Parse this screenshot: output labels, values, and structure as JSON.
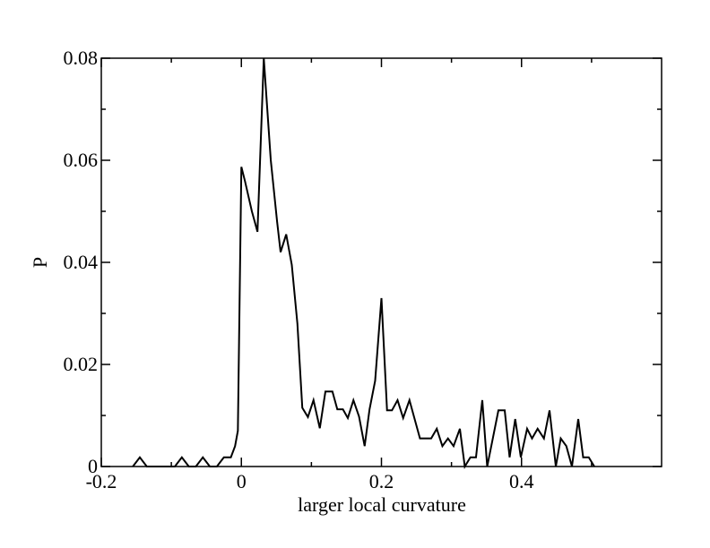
{
  "chart_data": {
    "type": "line",
    "xlabel": "larger local curvature",
    "ylabel": "P",
    "xlim": [
      -0.2,
      0.6
    ],
    "ylim": [
      0,
      0.08
    ],
    "xticks": [
      -0.2,
      0,
      0.2,
      0.4
    ],
    "yticks": [
      0,
      0.02,
      0.04,
      0.06,
      0.08
    ],
    "series": [
      {
        "color": "#000000",
        "x": [
          -0.155,
          -0.145,
          -0.135,
          -0.095,
          -0.085,
          -0.075,
          -0.065,
          -0.055,
          -0.045,
          -0.035,
          -0.025,
          -0.015,
          -0.009,
          -0.005,
          0.0,
          0.005,
          0.015,
          0.023,
          0.032,
          0.042,
          0.051,
          0.056,
          0.064,
          0.072,
          0.08,
          0.087,
          0.095,
          0.103,
          0.112,
          0.12,
          0.13,
          0.137,
          0.145,
          0.152,
          0.16,
          0.168,
          0.176,
          0.183,
          0.191,
          0.2,
          0.208,
          0.215,
          0.223,
          0.231,
          0.24,
          0.247,
          0.255,
          0.263,
          0.271,
          0.279,
          0.287,
          0.295,
          0.303,
          0.312,
          0.319,
          0.327,
          0.335,
          0.344,
          0.351,
          0.359,
          0.367,
          0.376,
          0.383,
          0.391,
          0.399,
          0.408,
          0.415,
          0.423,
          0.432,
          0.44,
          0.449,
          0.456,
          0.464,
          0.472,
          0.481,
          0.488,
          0.496,
          0.504
        ],
        "values": [
          0,
          0.0018,
          0,
          0,
          0.0018,
          0,
          0,
          0.0018,
          0,
          0,
          0.0018,
          0.0018,
          0.004,
          0.007,
          0.0587,
          0.056,
          0.05,
          0.046,
          0.08,
          0.06,
          0.048,
          0.042,
          0.0455,
          0.0395,
          0.028,
          0.0115,
          0.0097,
          0.013,
          0.0075,
          0.0147,
          0.0147,
          0.0112,
          0.0112,
          0.0095,
          0.013,
          0.0098,
          0.004,
          0.0112,
          0.0168,
          0.033,
          0.011,
          0.011,
          0.013,
          0.0095,
          0.013,
          0.0095,
          0.0055,
          0.0055,
          0.0055,
          0.0074,
          0.004,
          0.0055,
          0.004,
          0.0074,
          0,
          0.0018,
          0.0018,
          0.013,
          0,
          0.0055,
          0.011,
          0.011,
          0.0018,
          0.0093,
          0.0018,
          0.0074,
          0.0055,
          0.0074,
          0.0055,
          0.011,
          0,
          0.0055,
          0.004,
          0,
          0.0093,
          0.0018,
          0.0018,
          0
        ]
      }
    ]
  }
}
